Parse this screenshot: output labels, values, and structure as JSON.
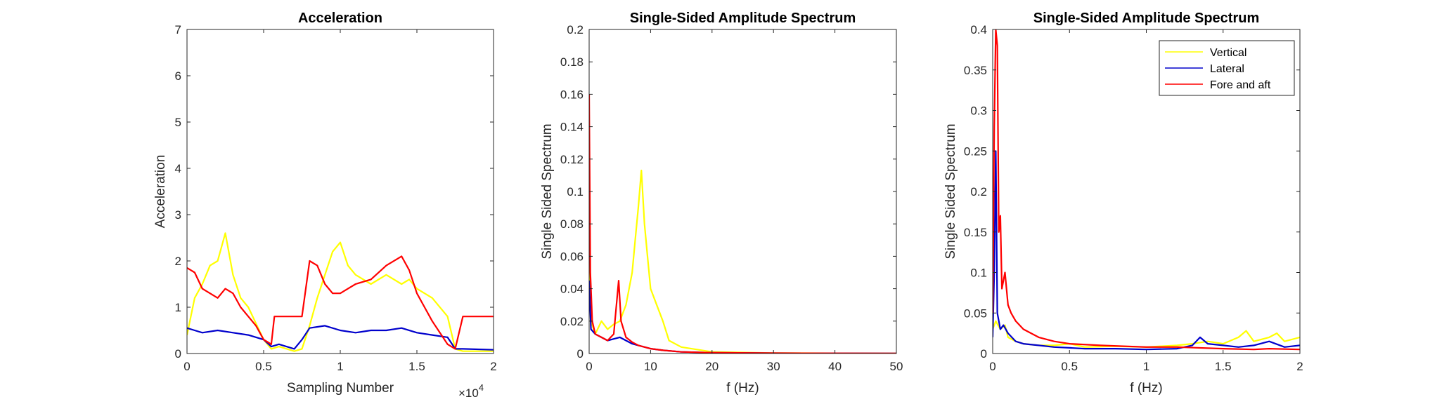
{
  "chart_data": [
    {
      "type": "line",
      "title": "Acceleration",
      "xlabel": "Sampling Number",
      "ylabel": "Acceleration",
      "xlim": [
        0,
        2
      ],
      "ylim": [
        0,
        7
      ],
      "x_multiplier": "×10",
      "x_exponent": "4",
      "xticks": [
        "0",
        "0.5",
        "1",
        "1.5",
        "2"
      ],
      "xtick_values": [
        0,
        0.5,
        1,
        1.5,
        2
      ],
      "yticks": [
        "0",
        "1",
        "2",
        "3",
        "4",
        "5",
        "6",
        "7"
      ],
      "ytick_values": [
        0,
        1,
        2,
        3,
        4,
        5,
        6,
        7
      ],
      "series": [
        {
          "name": "Vertical",
          "color": "#ffff00",
          "x": [
            0,
            0.05,
            0.1,
            0.15,
            0.2,
            0.25,
            0.3,
            0.35,
            0.4,
            0.5,
            0.55,
            0.6,
            0.7,
            0.75,
            0.8,
            0.85,
            0.9,
            0.95,
            1.0,
            1.05,
            1.1,
            1.2,
            1.3,
            1.4,
            1.45,
            1.5,
            1.6,
            1.7,
            1.75,
            1.8,
            2.0
          ],
          "y": [
            0.4,
            1.2,
            1.5,
            1.9,
            2.0,
            2.6,
            1.7,
            1.2,
            1.0,
            0.3,
            0.1,
            0.15,
            0.05,
            0.1,
            0.6,
            1.2,
            1.7,
            2.2,
            2.4,
            1.9,
            1.7,
            1.5,
            1.7,
            1.5,
            1.6,
            1.4,
            1.2,
            0.8,
            0.1,
            0.05,
            0.05
          ]
        },
        {
          "name": "Lateral",
          "color": "#0000cc",
          "x": [
            0,
            0.05,
            0.1,
            0.2,
            0.3,
            0.4,
            0.5,
            0.55,
            0.6,
            0.7,
            0.75,
            0.8,
            0.9,
            1.0,
            1.1,
            1.2,
            1.3,
            1.4,
            1.5,
            1.6,
            1.7,
            1.75,
            1.8,
            2.0
          ],
          "y": [
            0.55,
            0.5,
            0.45,
            0.5,
            0.45,
            0.4,
            0.3,
            0.15,
            0.2,
            0.1,
            0.3,
            0.55,
            0.6,
            0.5,
            0.45,
            0.5,
            0.5,
            0.55,
            0.45,
            0.4,
            0.35,
            0.1,
            0.1,
            0.08
          ]
        },
        {
          "name": "Fore and aft",
          "color": "#ff0000",
          "x": [
            0,
            0.05,
            0.1,
            0.15,
            0.2,
            0.25,
            0.3,
            0.35,
            0.4,
            0.45,
            0.5,
            0.55,
            0.57,
            0.6,
            0.7,
            0.75,
            0.8,
            0.85,
            0.9,
            0.95,
            1.0,
            1.05,
            1.1,
            1.2,
            1.3,
            1.4,
            1.45,
            1.5,
            1.55,
            1.6,
            1.7,
            1.75,
            1.8,
            1.9,
            2.0
          ],
          "y": [
            1.85,
            1.75,
            1.4,
            1.3,
            1.2,
            1.4,
            1.3,
            1.0,
            0.8,
            0.6,
            0.3,
            0.2,
            0.8,
            0.8,
            0.8,
            0.8,
            2.0,
            1.9,
            1.5,
            1.3,
            1.3,
            1.4,
            1.5,
            1.6,
            1.9,
            2.1,
            1.8,
            1.3,
            1.0,
            0.7,
            0.2,
            0.1,
            0.8,
            0.8,
            0.8
          ]
        }
      ]
    },
    {
      "type": "line",
      "title": "Single-Sided Amplitude Spectrum",
      "xlabel": "f (Hz)",
      "ylabel": "Single Sided Spectrum",
      "xlim": [
        0,
        50
      ],
      "ylim": [
        0,
        0.2
      ],
      "xticks": [
        "0",
        "10",
        "20",
        "30",
        "40",
        "50"
      ],
      "xtick_values": [
        0,
        10,
        20,
        30,
        40,
        50
      ],
      "yticks": [
        "0",
        "0.02",
        "0.04",
        "0.06",
        "0.08",
        "0.1",
        "0.12",
        "0.14",
        "0.16",
        "0.18",
        "0.2"
      ],
      "ytick_values": [
        0,
        0.02,
        0.04,
        0.06,
        0.08,
        0.1,
        0.12,
        0.14,
        0.16,
        0.18,
        0.2
      ],
      "series": [
        {
          "name": "Vertical",
          "color": "#ffff00",
          "x": [
            0,
            0.3,
            1,
            2,
            3,
            4,
            5,
            6,
            7,
            7.5,
            8,
            8.5,
            9,
            9.5,
            10,
            11,
            12,
            13,
            15,
            20,
            30,
            50
          ],
          "y": [
            0.06,
            0.02,
            0.012,
            0.02,
            0.015,
            0.018,
            0.02,
            0.03,
            0.05,
            0.07,
            0.09,
            0.113,
            0.08,
            0.06,
            0.04,
            0.03,
            0.02,
            0.008,
            0.004,
            0.001,
            0.0003,
            0.0001
          ]
        },
        {
          "name": "Lateral",
          "color": "#0000cc",
          "x": [
            0,
            0.3,
            1,
            2,
            3,
            4,
            5,
            6,
            7,
            8,
            10,
            12,
            15,
            20,
            30,
            50
          ],
          "y": [
            0.045,
            0.015,
            0.012,
            0.01,
            0.008,
            0.009,
            0.01,
            0.008,
            0.006,
            0.005,
            0.003,
            0.002,
            0.001,
            0.0005,
            0.0002,
            0.0001
          ]
        },
        {
          "name": "Fore and aft",
          "color": "#ff0000",
          "x": [
            0,
            0.2,
            0.5,
            1,
            2,
            3,
            4,
            4.8,
            5.2,
            6,
            7,
            8,
            10,
            12,
            15,
            20,
            30,
            50
          ],
          "y": [
            0.16,
            0.05,
            0.02,
            0.012,
            0.01,
            0.008,
            0.012,
            0.045,
            0.02,
            0.01,
            0.007,
            0.005,
            0.003,
            0.002,
            0.001,
            0.0005,
            0.0002,
            0.0001
          ]
        }
      ]
    },
    {
      "type": "line",
      "title": "Single-Sided Amplitude Spectrum",
      "xlabel": "f (Hz)",
      "ylabel": "Single Sided Spectrum",
      "xlim": [
        0,
        2
      ],
      "ylim": [
        0,
        0.4
      ],
      "xticks": [
        "0",
        "0.5",
        "1",
        "1.5",
        "2"
      ],
      "xtick_values": [
        0,
        0.5,
        1,
        1.5,
        2
      ],
      "yticks": [
        "0",
        "0.05",
        "0.1",
        "0.15",
        "0.2",
        "0.25",
        "0.3",
        "0.35",
        "0.4"
      ],
      "ytick_values": [
        0,
        0.05,
        0.1,
        0.15,
        0.2,
        0.25,
        0.3,
        0.35,
        0.4
      ],
      "legend": {
        "position": "top-right",
        "entries": [
          "Vertical",
          "Lateral",
          "Fore and aft"
        ]
      },
      "series": [
        {
          "name": "Vertical",
          "color": "#ffff00",
          "x": [
            0,
            0.02,
            0.05,
            0.08,
            0.1,
            0.15,
            0.2,
            0.3,
            0.4,
            0.5,
            0.6,
            0.8,
            1.0,
            1.2,
            1.3,
            1.4,
            1.5,
            1.6,
            1.65,
            1.7,
            1.8,
            1.85,
            1.9,
            2.0
          ],
          "y": [
            0.03,
            0.04,
            0.03,
            0.035,
            0.02,
            0.015,
            0.012,
            0.01,
            0.01,
            0.012,
            0.008,
            0.009,
            0.008,
            0.01,
            0.012,
            0.015,
            0.012,
            0.02,
            0.028,
            0.015,
            0.02,
            0.025,
            0.015,
            0.02
          ]
        },
        {
          "name": "Lateral",
          "color": "#0000cc",
          "x": [
            0,
            0.01,
            0.02,
            0.03,
            0.05,
            0.07,
            0.1,
            0.15,
            0.2,
            0.3,
            0.4,
            0.5,
            0.6,
            0.8,
            1.0,
            1.2,
            1.3,
            1.35,
            1.4,
            1.5,
            1.6,
            1.7,
            1.8,
            1.9,
            2.0
          ],
          "y": [
            0.02,
            0.1,
            0.25,
            0.05,
            0.03,
            0.035,
            0.025,
            0.015,
            0.012,
            0.01,
            0.008,
            0.007,
            0.006,
            0.006,
            0.005,
            0.006,
            0.01,
            0.02,
            0.012,
            0.01,
            0.008,
            0.01,
            0.015,
            0.008,
            0.01
          ]
        },
        {
          "name": "Fore and aft",
          "color": "#ff0000",
          "x": [
            0,
            0.01,
            0.02,
            0.03,
            0.04,
            0.05,
            0.06,
            0.08,
            0.1,
            0.12,
            0.15,
            0.2,
            0.25,
            0.3,
            0.4,
            0.5,
            0.7,
            1.0,
            1.2,
            1.5,
            1.7,
            1.8,
            2.0
          ],
          "y": [
            0.05,
            0.28,
            0.4,
            0.38,
            0.15,
            0.17,
            0.08,
            0.1,
            0.06,
            0.05,
            0.04,
            0.03,
            0.025,
            0.02,
            0.015,
            0.012,
            0.01,
            0.008,
            0.008,
            0.006,
            0.005,
            0.006,
            0.005
          ]
        }
      ]
    }
  ]
}
